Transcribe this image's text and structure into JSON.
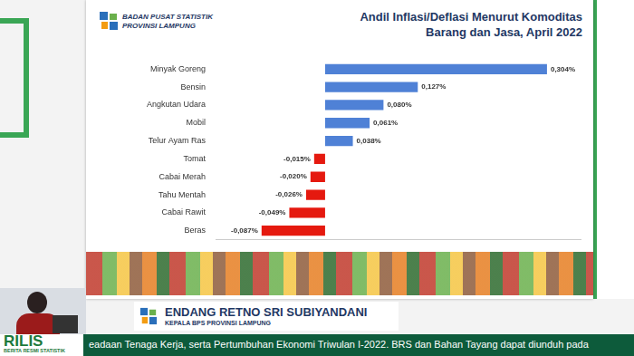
{
  "header": {
    "agency": [
      "BADAN PUSAT STATISTIK",
      "PROVINSI LAMPUNG"
    ]
  },
  "chart_data": {
    "type": "bar",
    "orientation": "horizontal",
    "title": [
      "Andil Inflasi/Deflasi Menurut Komoditas",
      "Barang dan Jasa, April 2022"
    ],
    "categories": [
      "Minyak Goreng",
      "Bensin",
      "Angkutan Udara",
      "Mobil",
      "Telur Ayam Ras",
      "Tomat",
      "Cabai Merah",
      "Tahu Mentah",
      "Cabai Rawit",
      "Beras"
    ],
    "values": [
      0.304,
      0.127,
      0.08,
      0.061,
      0.038,
      -0.015,
      -0.02,
      -0.026,
      -0.049,
      -0.087
    ],
    "value_labels": [
      "0,304%",
      "0,127%",
      "0,080%",
      "0,061%",
      "0,038%",
      "-0,015%",
      "-0,020%",
      "-0,026%",
      "-0,049%",
      "-0,087%"
    ],
    "colors": [
      "#4f81d6",
      "#4f81d6",
      "#4f81d6",
      "#4f81d6",
      "#4f81d6",
      "#e5190f",
      "#e5190f",
      "#e5190f",
      "#e5190f",
      "#e5190f"
    ],
    "xlim": [
      -0.15,
      0.35
    ],
    "grid": false,
    "data_labels": true,
    "tick_labels": "y"
  },
  "caption": {
    "name": "ENDANG RETNO SRI SUBIYANDANI",
    "role": "KEPALA BPS PROVINSI LAMPUNG"
  },
  "footer": {
    "badge": "RILIS",
    "badge_sub": "BERITA RESMI STATISTIK",
    "ticker": "eadaan Tenaga Kerja, serta Pertumbuhan Ekonomi Triwulan I-2022. BRS dan Bahan Tayang dapat diunduh pada"
  }
}
